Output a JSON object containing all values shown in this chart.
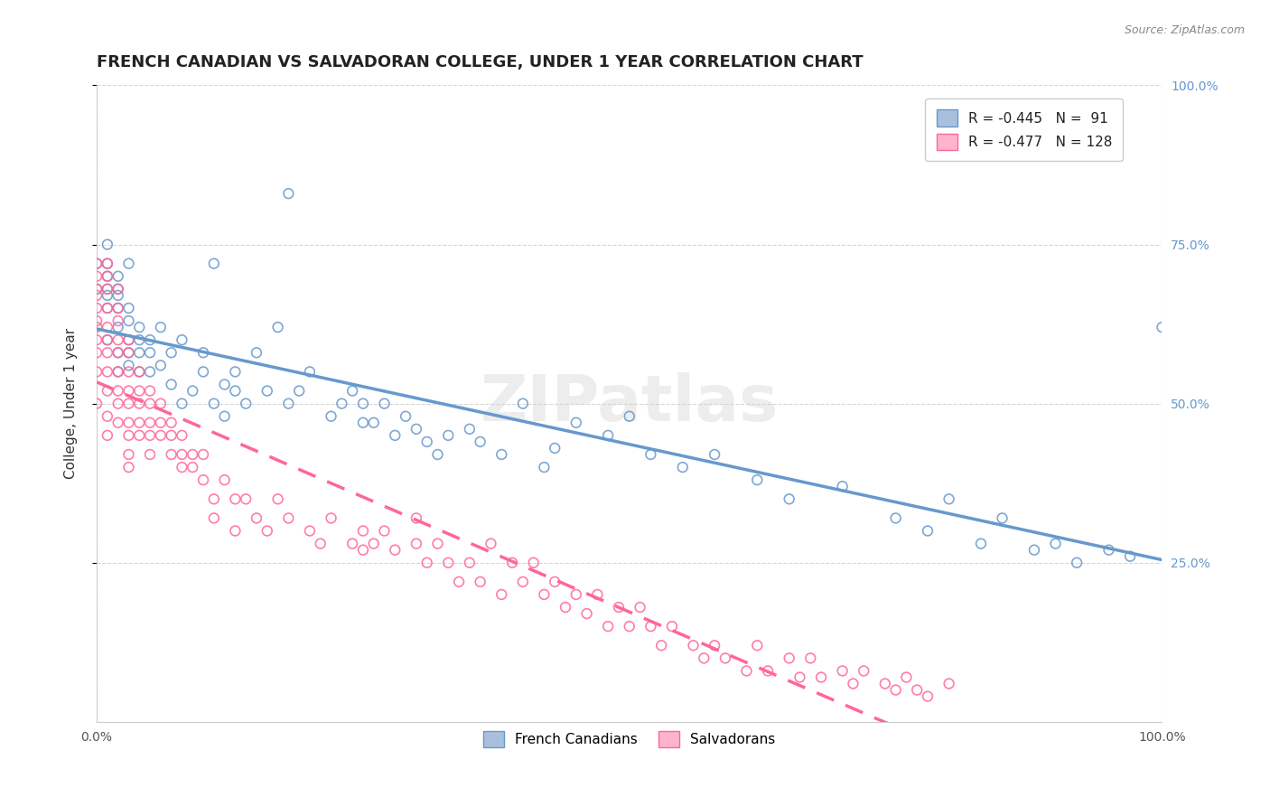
{
  "title": "FRENCH CANADIAN VS SALVADORAN COLLEGE, UNDER 1 YEAR CORRELATION CHART",
  "source_text": "Source: ZipAtlas.com",
  "xlabel": "",
  "ylabel": "College, Under 1 year",
  "xlim": [
    0.0,
    1.0
  ],
  "ylim": [
    0.0,
    1.0
  ],
  "x_tick_labels": [
    "0.0%",
    "100.0%"
  ],
  "y_tick_labels_right": [
    "25.0%",
    "50.0%",
    "75.0%",
    "100.0%"
  ],
  "watermark": "ZIPatlas",
  "legend_r1": "R = -0.445",
  "legend_n1": "N =  91",
  "legend_r2": "R = -0.477",
  "legend_n2": "N = 128",
  "blue_color": "#6699CC",
  "blue_fill": "#AABFDD",
  "pink_color": "#FF6699",
  "pink_fill": "#FFB3CC",
  "blue_scatter_x": [
    0.0,
    0.0,
    0.01,
    0.01,
    0.01,
    0.01,
    0.01,
    0.01,
    0.01,
    0.02,
    0.02,
    0.02,
    0.02,
    0.02,
    0.02,
    0.02,
    0.03,
    0.03,
    0.03,
    0.03,
    0.03,
    0.03,
    0.04,
    0.04,
    0.04,
    0.04,
    0.05,
    0.05,
    0.05,
    0.06,
    0.06,
    0.07,
    0.07,
    0.08,
    0.08,
    0.09,
    0.1,
    0.1,
    0.11,
    0.11,
    0.12,
    0.12,
    0.13,
    0.13,
    0.14,
    0.15,
    0.16,
    0.17,
    0.18,
    0.18,
    0.19,
    0.2,
    0.22,
    0.23,
    0.24,
    0.25,
    0.25,
    0.26,
    0.27,
    0.28,
    0.29,
    0.3,
    0.31,
    0.32,
    0.33,
    0.35,
    0.36,
    0.38,
    0.4,
    0.42,
    0.43,
    0.45,
    0.48,
    0.5,
    0.52,
    0.55,
    0.58,
    0.62,
    0.65,
    0.7,
    0.75,
    0.78,
    0.8,
    0.83,
    0.85,
    0.88,
    0.9,
    0.92,
    0.95,
    0.97,
    1.0
  ],
  "blue_scatter_y": [
    0.72,
    0.68,
    0.75,
    0.7,
    0.68,
    0.65,
    0.72,
    0.6,
    0.67,
    0.7,
    0.67,
    0.65,
    0.62,
    0.68,
    0.58,
    0.55,
    0.63,
    0.6,
    0.58,
    0.56,
    0.72,
    0.65,
    0.6,
    0.58,
    0.55,
    0.62,
    0.58,
    0.55,
    0.6,
    0.62,
    0.56,
    0.58,
    0.53,
    0.5,
    0.6,
    0.52,
    0.55,
    0.58,
    0.5,
    0.72,
    0.53,
    0.48,
    0.52,
    0.55,
    0.5,
    0.58,
    0.52,
    0.62,
    0.83,
    0.5,
    0.52,
    0.55,
    0.48,
    0.5,
    0.52,
    0.47,
    0.5,
    0.47,
    0.5,
    0.45,
    0.48,
    0.46,
    0.44,
    0.42,
    0.45,
    0.46,
    0.44,
    0.42,
    0.5,
    0.4,
    0.43,
    0.47,
    0.45,
    0.48,
    0.42,
    0.4,
    0.42,
    0.38,
    0.35,
    0.37,
    0.32,
    0.3,
    0.35,
    0.28,
    0.32,
    0.27,
    0.28,
    0.25,
    0.27,
    0.26,
    0.62
  ],
  "pink_scatter_x": [
    0.0,
    0.0,
    0.0,
    0.0,
    0.0,
    0.0,
    0.0,
    0.0,
    0.0,
    0.0,
    0.0,
    0.01,
    0.01,
    0.01,
    0.01,
    0.01,
    0.01,
    0.01,
    0.01,
    0.01,
    0.01,
    0.01,
    0.02,
    0.02,
    0.02,
    0.02,
    0.02,
    0.02,
    0.02,
    0.02,
    0.02,
    0.03,
    0.03,
    0.03,
    0.03,
    0.03,
    0.03,
    0.03,
    0.03,
    0.03,
    0.04,
    0.04,
    0.04,
    0.04,
    0.04,
    0.05,
    0.05,
    0.05,
    0.05,
    0.05,
    0.06,
    0.06,
    0.06,
    0.07,
    0.07,
    0.07,
    0.08,
    0.08,
    0.08,
    0.09,
    0.09,
    0.1,
    0.1,
    0.11,
    0.11,
    0.12,
    0.13,
    0.13,
    0.14,
    0.15,
    0.16,
    0.17,
    0.18,
    0.2,
    0.21,
    0.22,
    0.24,
    0.25,
    0.25,
    0.26,
    0.27,
    0.28,
    0.3,
    0.3,
    0.31,
    0.32,
    0.33,
    0.34,
    0.35,
    0.36,
    0.37,
    0.38,
    0.39,
    0.4,
    0.41,
    0.42,
    0.43,
    0.44,
    0.45,
    0.46,
    0.47,
    0.48,
    0.49,
    0.5,
    0.51,
    0.52,
    0.53,
    0.54,
    0.56,
    0.57,
    0.58,
    0.59,
    0.61,
    0.62,
    0.63,
    0.65,
    0.66,
    0.67,
    0.68,
    0.7,
    0.71,
    0.72,
    0.74,
    0.75,
    0.76,
    0.77,
    0.78,
    0.8
  ],
  "pink_scatter_y": [
    0.7,
    0.67,
    0.65,
    0.63,
    0.6,
    0.68,
    0.58,
    0.55,
    0.72,
    0.5,
    0.62,
    0.68,
    0.65,
    0.62,
    0.6,
    0.58,
    0.55,
    0.7,
    0.52,
    0.48,
    0.45,
    0.72,
    0.63,
    0.6,
    0.58,
    0.55,
    0.52,
    0.5,
    0.47,
    0.65,
    0.68,
    0.58,
    0.55,
    0.52,
    0.6,
    0.5,
    0.47,
    0.45,
    0.42,
    0.4,
    0.55,
    0.52,
    0.5,
    0.47,
    0.45,
    0.52,
    0.5,
    0.47,
    0.45,
    0.42,
    0.5,
    0.47,
    0.45,
    0.47,
    0.45,
    0.42,
    0.45,
    0.42,
    0.4,
    0.42,
    0.4,
    0.42,
    0.38,
    0.35,
    0.32,
    0.38,
    0.35,
    0.3,
    0.35,
    0.32,
    0.3,
    0.35,
    0.32,
    0.3,
    0.28,
    0.32,
    0.28,
    0.3,
    0.27,
    0.28,
    0.3,
    0.27,
    0.32,
    0.28,
    0.25,
    0.28,
    0.25,
    0.22,
    0.25,
    0.22,
    0.28,
    0.2,
    0.25,
    0.22,
    0.25,
    0.2,
    0.22,
    0.18,
    0.2,
    0.17,
    0.2,
    0.15,
    0.18,
    0.15,
    0.18,
    0.15,
    0.12,
    0.15,
    0.12,
    0.1,
    0.12,
    0.1,
    0.08,
    0.12,
    0.08,
    0.1,
    0.07,
    0.1,
    0.07,
    0.08,
    0.06,
    0.08,
    0.06,
    0.05,
    0.07,
    0.05,
    0.04,
    0.06
  ],
  "grid_color": "#CCCCCC",
  "background_color": "#FFFFFF",
  "title_fontsize": 13,
  "axis_fontsize": 11,
  "tick_fontsize": 10,
  "source_fontsize": 9
}
